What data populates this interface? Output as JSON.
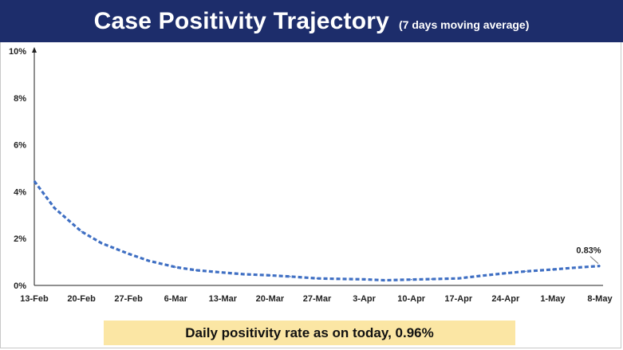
{
  "header": {
    "title": "Case Positivity Trajectory",
    "subtitle": "(7 days moving average)"
  },
  "footer": {
    "callout": "Daily positivity rate as on today, 0.96%"
  },
  "colors": {
    "header_bg": "#1d2d6b",
    "line": "#3f6fc3",
    "callout_bg": "#fbe6a4"
  },
  "chart_data": {
    "type": "line",
    "title": "Case Positivity Trajectory",
    "subtitle": "(7 days moving average)",
    "xlabel": "",
    "ylabel": "",
    "x_tick_labels": [
      "13-Feb",
      "20-Feb",
      "27-Feb",
      "6-Mar",
      "13-Mar",
      "20-Mar",
      "27-Mar",
      "3-Apr",
      "10-Apr",
      "17-Apr",
      "24-Apr",
      "1-May",
      "8-May"
    ],
    "y_tick_labels": [
      "0%",
      "2%",
      "4%",
      "6%",
      "8%",
      "10%"
    ],
    "ylim": [
      0,
      10
    ],
    "grid": false,
    "line_style": "dashed",
    "end_label": "0.83%",
    "series": [
      {
        "x": [
          "13-Feb",
          "16-Feb",
          "20-Feb",
          "23-Feb",
          "27-Feb",
          "2-Mar",
          "6-Mar",
          "9-Mar",
          "13-Mar",
          "16-Mar",
          "20-Mar",
          "23-Mar",
          "27-Mar",
          "30-Mar",
          "3-Apr",
          "6-Apr",
          "10-Apr",
          "13-Apr",
          "17-Apr",
          "20-Apr",
          "24-Apr",
          "27-Apr",
          "1-May",
          "4-May",
          "8-May"
        ],
        "values": [
          4.45,
          3.3,
          2.3,
          1.8,
          1.35,
          1.05,
          0.78,
          0.65,
          0.55,
          0.48,
          0.43,
          0.38,
          0.3,
          0.28,
          0.26,
          0.22,
          0.25,
          0.27,
          0.3,
          0.4,
          0.52,
          0.6,
          0.68,
          0.75,
          0.83
        ]
      }
    ]
  }
}
